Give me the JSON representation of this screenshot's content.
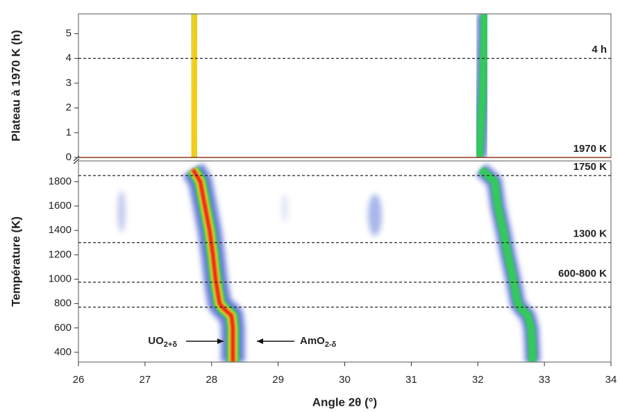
{
  "chart_data": [
    {
      "type": "line",
      "ylabel": "Plateau à 1970 K (h)",
      "ylim": [
        0,
        5.8
      ],
      "yticks": [
        0,
        1,
        2,
        3,
        4,
        5
      ],
      "xlim": [
        26,
        34
      ],
      "y": [
        0,
        1,
        2,
        3,
        4,
        5,
        5.8
      ],
      "series": [
        {
          "color": "#f6c51c",
          "values": [
            27.72,
            27.73,
            27.74,
            27.75,
            27.75,
            27.76,
            27.76
          ]
        },
        {
          "color": "#39c85a",
          "values": [
            32.02,
            32.04,
            32.06,
            32.08,
            32.09,
            32.1,
            32.1
          ]
        }
      ],
      "annotations": [
        {
          "text": "4 h",
          "y": 4,
          "style": "dashed"
        },
        {
          "text": "1970 K",
          "y": 0,
          "style": "solid"
        }
      ]
    },
    {
      "type": "line",
      "ylabel": "Température (K)",
      "xlabel": "Angle 2θ (°)",
      "ylim": [
        320,
        1970
      ],
      "yticks": [
        400,
        600,
        800,
        1000,
        1200,
        1400,
        1600,
        1800
      ],
      "xlim": [
        26,
        34
      ],
      "xticks": [
        26,
        27,
        28,
        29,
        30,
        31,
        32,
        33,
        34
      ],
      "y": [
        1900,
        1800,
        1600,
        1400,
        1200,
        1000,
        800,
        760,
        700,
        600,
        400,
        320
      ],
      "series": [
        {
          "color": "#e8231c",
          "values": [
            27.72,
            27.83,
            27.9,
            27.97,
            28.02,
            28.06,
            28.12,
            28.18,
            28.3,
            28.32,
            28.32,
            28.32
          ]
        },
        {
          "color": "#39c85a",
          "values": [
            32.05,
            32.25,
            32.3,
            32.38,
            32.45,
            32.53,
            32.6,
            32.65,
            32.75,
            32.8,
            32.82,
            32.82
          ]
        }
      ],
      "annotations": [
        {
          "text": "1750 K",
          "y": 1850,
          "style": "dashed"
        },
        {
          "text": "1300 K",
          "y": 1300,
          "style": "dashed"
        },
        {
          "text": "600-800 K",
          "y": 975,
          "style": "dashed"
        },
        {
          "text": "",
          "y": 770,
          "style": "dashed"
        }
      ],
      "peak_labels": [
        {
          "main": "UO",
          "sub": "2+δ"
        },
        {
          "main": "AmO",
          "sub": "2-δ"
        }
      ]
    }
  ]
}
